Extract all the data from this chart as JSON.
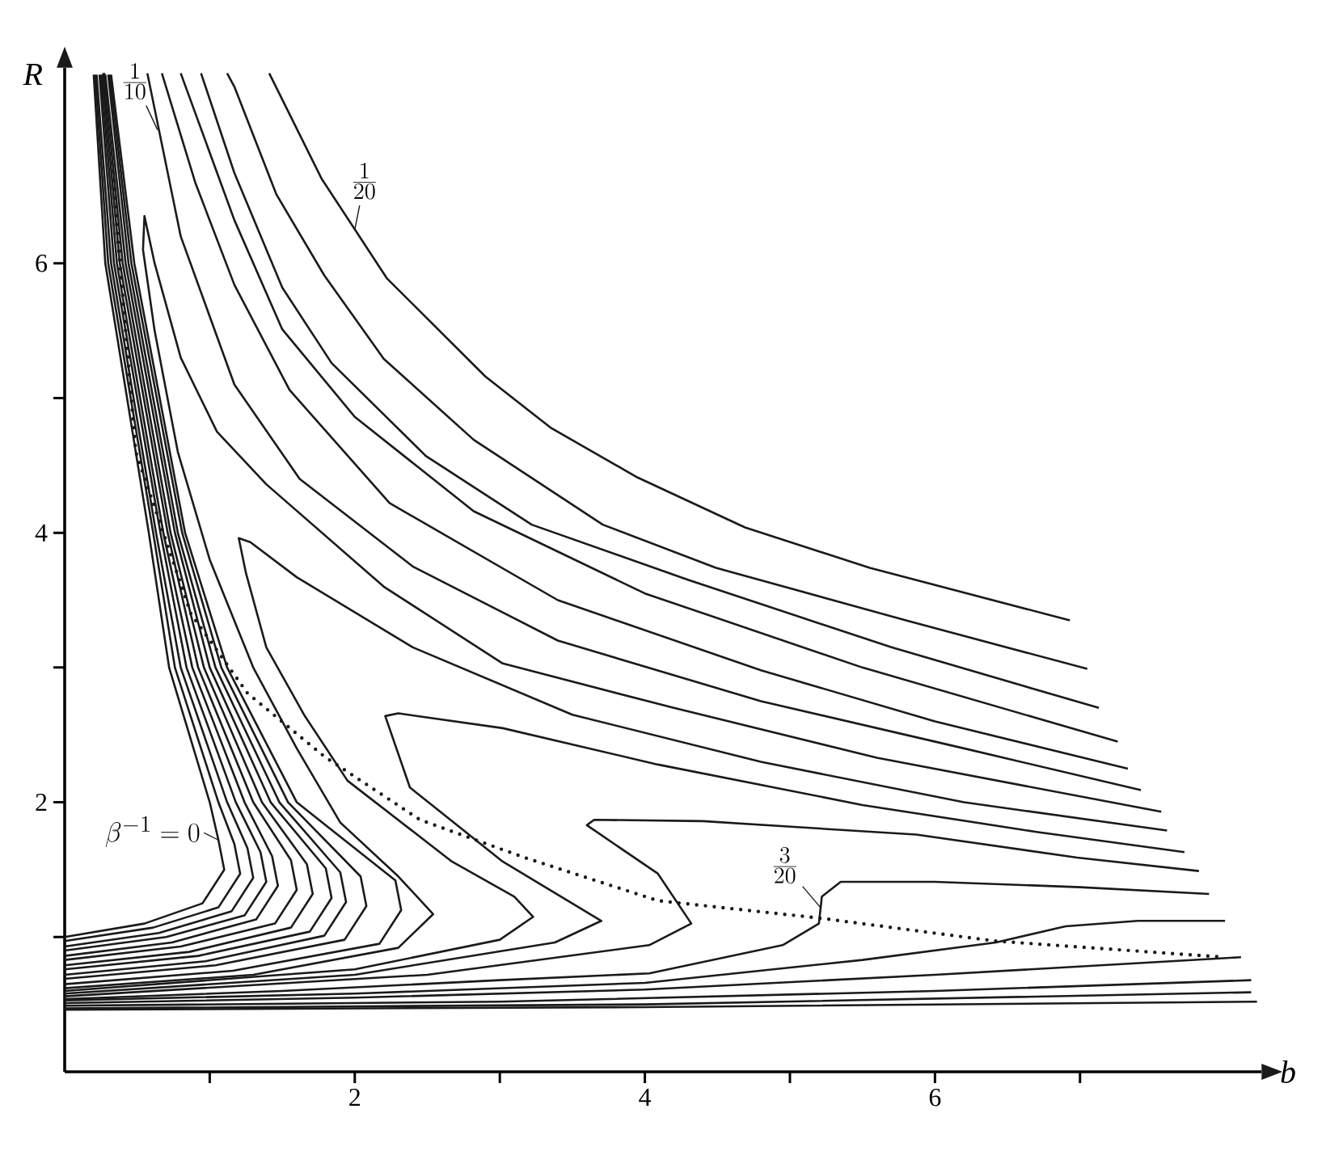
{
  "chart_data": {
    "type": "line",
    "xlabel": "b",
    "ylabel": "R",
    "color": "#1a1a1a",
    "line_style": "solid",
    "marker": "none",
    "xlim": [
      0,
      8.25
    ],
    "ylim": [
      0,
      7.45
    ],
    "xticks": [
      {
        "value": 1,
        "label": null
      },
      2,
      {
        "value": 3,
        "label": null
      },
      4,
      {
        "value": 5,
        "label": null
      },
      6,
      {
        "value": 7,
        "label": null
      }
    ],
    "yticks": [
      {
        "value": 1,
        "label": null
      },
      2,
      {
        "value": 3,
        "label": null
      },
      4,
      {
        "value": 5,
        "label": null
      },
      6
    ],
    "series": [
      {
        "x": [
          1.41,
          1.77,
          2.22,
          2.9,
          3.35,
          3.95,
          4.69,
          5.55,
          6.93
        ],
        "values": [
          7.41,
          6.63,
          5.89,
          5.16,
          4.78,
          4.41,
          4.04,
          3.74,
          3.35
        ]
      },
      {
        "x": [
          1.12,
          1.17,
          1.46,
          1.79,
          2.2,
          2.82,
          3.71,
          4.49,
          5.8,
          7.05
        ],
        "values": [
          7.41,
          7.31,
          6.51,
          5.91,
          5.29,
          4.69,
          4.06,
          3.74,
          3.35,
          2.99
        ]
      },
      {
        "x": [
          0.94,
          1.17,
          1.5,
          1.84,
          2.49,
          3.22,
          4.3,
          5.7,
          7.13
        ],
        "values": [
          7.41,
          6.67,
          5.82,
          5.26,
          4.57,
          4.06,
          3.65,
          3.15,
          2.7
        ]
      },
      {
        "x": [
          0.8,
          1.17,
          1.5,
          2.0,
          2.82,
          4.0,
          5.5,
          7.26
        ],
        "values": [
          7.41,
          6.32,
          5.51,
          4.86,
          4.16,
          3.55,
          3.0,
          2.45
        ]
      },
      {
        "x": [
          0.67,
          0.9,
          1.17,
          1.55,
          2.24,
          3.4,
          4.8,
          6.0,
          7.33
        ],
        "values": [
          7.41,
          6.6,
          5.84,
          5.06,
          4.22,
          3.5,
          2.98,
          2.6,
          2.25
        ]
      },
      {
        "x": [
          0.57,
          0.8,
          1.17,
          1.62,
          2.4,
          3.4,
          4.8,
          6.2,
          7.42
        ],
        "values": [
          7.41,
          6.2,
          5.1,
          4.4,
          3.75,
          3.2,
          2.75,
          2.4,
          2.09
        ]
      },
      {
        "x": [
          0,
          1.3,
          2.3,
          2.54,
          2.3,
          1.9,
          1.6,
          1.3,
          1.0,
          0.78,
          0.62,
          0.54,
          0.55,
          0.62,
          0.8,
          1.05,
          1.39,
          2.2,
          3.02,
          4.2,
          5.6,
          7.56
        ],
        "values": [
          0.62,
          0.72,
          0.92,
          1.17,
          1.45,
          1.85,
          2.4,
          3.0,
          3.8,
          4.6,
          5.5,
          6.1,
          6.35,
          6.0,
          5.3,
          4.75,
          4.36,
          3.6,
          3.03,
          2.7,
          2.33,
          1.93
        ]
      },
      {
        "x": [
          0,
          2.0,
          3.0,
          3.23,
          3.1,
          2.67,
          1.95,
          1.65,
          1.39,
          1.25,
          1.2,
          1.28,
          1.6,
          2.4,
          3.5,
          4.8,
          6.2,
          7.6
        ],
        "values": [
          0.6,
          0.76,
          0.98,
          1.15,
          1.3,
          1.56,
          2.16,
          2.65,
          3.15,
          3.7,
          3.96,
          3.93,
          3.67,
          3.15,
          2.65,
          2.3,
          2.0,
          1.79
        ]
      },
      {
        "x": [
          0,
          2.0,
          3.38,
          3.7,
          3.02,
          2.38,
          2.21,
          2.3,
          3.02,
          4.09,
          5.5,
          6.7,
          7.72
        ],
        "values": [
          0.58,
          0.72,
          0.96,
          1.12,
          1.56,
          2.11,
          2.64,
          2.66,
          2.55,
          2.28,
          1.98,
          1.78,
          1.63
        ]
      },
      {
        "x": [
          0,
          2.5,
          4.03,
          4.32,
          4.09,
          3.6,
          3.65,
          4.4,
          5.87,
          6.98,
          7.82
        ],
        "values": [
          0.56,
          0.72,
          0.94,
          1.1,
          1.47,
          1.83,
          1.87,
          1.86,
          1.76,
          1.59,
          1.49
        ]
      },
      {
        "x": [
          0,
          1.5,
          3,
          4.03,
          4.95,
          5.2,
          5.22,
          5.35,
          6.0,
          7.0,
          7.89
        ],
        "values": [
          0.54,
          0.6,
          0.68,
          0.73,
          0.94,
          1.1,
          1.3,
          1.41,
          1.41,
          1.37,
          1.32
        ]
      },
      {
        "x": [
          0,
          2,
          4,
          5.5,
          6.42,
          6.9,
          7.4,
          8.0
        ],
        "values": [
          0.53,
          0.58,
          0.66,
          0.83,
          0.96,
          1.08,
          1.12,
          1.12
        ]
      },
      {
        "x": [
          0,
          2,
          4,
          6,
          8.11
        ],
        "values": [
          0.51,
          0.55,
          0.61,
          0.72,
          0.85
        ]
      },
      {
        "x": [
          0,
          3,
          6,
          8.18
        ],
        "values": [
          0.49,
          0.52,
          0.6,
          0.68
        ]
      },
      {
        "x": [
          0,
          4,
          8.18
        ],
        "values": [
          0.47,
          0.5,
          0.59
        ]
      },
      {
        "x": [
          0,
          4,
          8.22
        ],
        "values": [
          0.46,
          0.48,
          0.52
        ]
      },
      {
        "x": [
          0.2,
          0.28,
          0.58,
          0.72,
          1.0,
          1.06,
          1.1,
          0.95,
          0.55,
          0
        ],
        "values": [
          7.4,
          6,
          4,
          3,
          2,
          1.72,
          1.5,
          1.25,
          1.1,
          1.0
        ]
      },
      {
        "x": [
          0.21,
          0.3,
          0.61,
          0.76,
          1.06,
          1.17,
          1.21,
          1.06,
          0.61,
          0
        ],
        "values": [
          7.4,
          6,
          4,
          3,
          2,
          1.69,
          1.47,
          1.22,
          1.07,
          0.97
        ]
      },
      {
        "x": [
          0.22,
          0.32,
          0.63,
          0.8,
          1.12,
          1.26,
          1.3,
          1.15,
          0.65,
          0
        ],
        "values": [
          7.4,
          6,
          4,
          3,
          2,
          1.66,
          1.44,
          1.19,
          1.03,
          0.93
        ]
      },
      {
        "x": [
          0.24,
          0.34,
          0.66,
          0.84,
          1.18,
          1.35,
          1.39,
          1.24,
          0.7,
          0
        ],
        "values": [
          7.4,
          6,
          4,
          3,
          2,
          1.63,
          1.41,
          1.16,
          1.0,
          0.9
        ]
      },
      {
        "x": [
          0.25,
          0.36,
          0.68,
          0.88,
          1.24,
          1.43,
          1.47,
          1.32,
          0.74,
          0
        ],
        "values": [
          7.4,
          6,
          4,
          3,
          2,
          1.6,
          1.38,
          1.13,
          0.96,
          0.86
        ]
      },
      {
        "x": [
          0.26,
          0.38,
          0.71,
          0.92,
          1.3,
          1.56,
          1.6,
          1.45,
          0.8,
          0
        ],
        "values": [
          7.4,
          6,
          4,
          3,
          2,
          1.57,
          1.35,
          1.1,
          0.93,
          0.83
        ]
      },
      {
        "x": [
          0.27,
          0.4,
          0.73,
          0.96,
          1.36,
          1.67,
          1.71,
          1.56,
          0.86,
          0
        ],
        "values": [
          7.4,
          6,
          4,
          3,
          2,
          1.54,
          1.32,
          1.07,
          0.89,
          0.79
        ]
      },
      {
        "x": [
          0.28,
          0.42,
          0.76,
          1.0,
          1.42,
          1.8,
          1.84,
          1.69,
          0.92,
          0
        ],
        "values": [
          7.4,
          6,
          4,
          3,
          2,
          1.51,
          1.29,
          1.04,
          0.86,
          0.76
        ]
      },
      {
        "x": [
          0.3,
          0.44,
          0.78,
          1.04,
          1.48,
          1.9,
          1.94,
          1.79,
          0.97,
          0
        ],
        "values": [
          7.4,
          6,
          4,
          3,
          2,
          1.48,
          1.26,
          1.01,
          0.82,
          0.72
        ]
      },
      {
        "x": [
          0.31,
          0.46,
          0.81,
          1.08,
          1.54,
          2.04,
          2.08,
          1.93,
          1.04,
          0
        ],
        "values": [
          7.4,
          6,
          4,
          3,
          2,
          1.45,
          1.23,
          0.98,
          0.79,
          0.69
        ]
      },
      {
        "x": [
          0.32,
          0.48,
          0.83,
          1.12,
          1.6,
          2.28,
          2.32,
          2.17,
          1.16,
          0
        ],
        "values": [
          7.4,
          6,
          4,
          3,
          2,
          1.42,
          1.2,
          0.95,
          0.75,
          0.65
        ]
      },
      {
        "x": [
          0.27,
          0.34,
          0.49,
          0.87,
          1.26,
          1.79,
          2.45,
          3.17,
          4.09,
          5.21,
          6.42,
          8.0
        ],
        "values": [
          7.4,
          6.53,
          4.6,
          3.4,
          2.81,
          2.34,
          1.87,
          1.59,
          1.27,
          1.14,
          0.97,
          0.85
        ],
        "line_style": "dotted"
      }
    ],
    "annotations": [
      {
        "text": "\\frac{1}{10}",
        "x": 0.64,
        "y": 6.99
      },
      {
        "text": "\\frac{1}{20}",
        "x": 2.0,
        "y": 6.25
      },
      {
        "text": "\\beta^{-1}=0",
        "x": 1.06,
        "y": 1.72
      },
      {
        "text": "\\frac{3}{20}",
        "x": 5.21,
        "y": 1.22
      }
    ]
  }
}
